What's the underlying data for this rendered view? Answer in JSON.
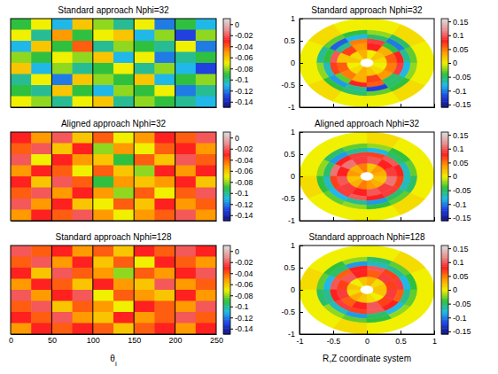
{
  "chart_data": [
    {
      "type": "heatmap",
      "title": "Standard approach Nphi=32",
      "xlim": [
        0,
        250
      ],
      "xticks": [
        0,
        50,
        100,
        150,
        200,
        250
      ],
      "grid": true,
      "tick_labels": false,
      "x_edges": [
        0,
        25,
        50,
        75,
        100,
        125,
        150,
        175,
        200,
        225,
        250
      ],
      "cells": [
        [
          -0.09,
          -0.07,
          -0.11,
          -0.06,
          -0.08,
          -0.1,
          -0.07,
          -0.12,
          -0.09,
          -0.11
        ],
        [
          -0.07,
          -0.1,
          -0.05,
          -0.09,
          -0.07,
          -0.06,
          -0.11,
          -0.08,
          -0.13,
          -0.08
        ],
        [
          -0.11,
          -0.06,
          -0.09,
          -0.04,
          -0.1,
          -0.08,
          -0.09,
          -0.1,
          -0.07,
          -0.12
        ],
        [
          -0.08,
          -0.09,
          -0.07,
          -0.08,
          -0.06,
          -0.11,
          -0.07,
          -0.12,
          -0.1,
          -0.09
        ],
        [
          -0.06,
          -0.11,
          -0.08,
          -0.1,
          -0.09,
          -0.07,
          -0.1,
          -0.08,
          -0.11,
          -0.13
        ],
        [
          -0.1,
          -0.07,
          -0.12,
          -0.06,
          -0.08,
          -0.09,
          -0.06,
          -0.11,
          -0.09,
          -0.08
        ],
        [
          -0.09,
          -0.1,
          -0.06,
          -0.09,
          -0.11,
          -0.08,
          -0.09,
          -0.07,
          -0.12,
          -0.1
        ],
        [
          -0.07,
          -0.08,
          -0.1,
          -0.07,
          -0.06,
          -0.1,
          -0.08,
          -0.09,
          -0.1,
          -0.11
        ]
      ],
      "colorbar": {
        "range": [
          -0.15,
          0.01
        ],
        "ticks": [
          0,
          -0.02,
          -0.04,
          -0.06,
          -0.08,
          -0.1,
          -0.12,
          -0.14
        ]
      }
    },
    {
      "type": "heatmap",
      "title": "Aligned approach Nphi=32",
      "xlim": [
        0,
        250
      ],
      "xticks": [
        0,
        50,
        100,
        150,
        200,
        250
      ],
      "grid": true,
      "tick_labels": false,
      "x_edges": [
        0,
        25,
        50,
        75,
        100,
        125,
        150,
        175,
        200,
        225,
        250
      ],
      "cells": [
        [
          -0.03,
          -0.05,
          -0.02,
          -0.06,
          -0.04,
          -0.07,
          -0.05,
          -0.03,
          -0.04,
          -0.02
        ],
        [
          -0.04,
          -0.02,
          -0.06,
          -0.03,
          -0.08,
          -0.05,
          -0.07,
          -0.04,
          -0.03,
          -0.05
        ],
        [
          -0.02,
          -0.07,
          -0.03,
          -0.05,
          -0.06,
          -0.09,
          -0.04,
          -0.06,
          -0.02,
          -0.04
        ],
        [
          -0.05,
          -0.03,
          -0.04,
          -0.07,
          -0.04,
          -0.06,
          -0.08,
          -0.03,
          -0.05,
          -0.03
        ],
        [
          -0.03,
          -0.06,
          -0.02,
          -0.04,
          -0.09,
          -0.05,
          -0.06,
          -0.05,
          -0.03,
          -0.06
        ],
        [
          -0.04,
          -0.02,
          -0.05,
          -0.03,
          -0.05,
          -0.08,
          -0.04,
          -0.07,
          -0.04,
          -0.02
        ],
        [
          -0.02,
          -0.05,
          -0.03,
          -0.06,
          -0.07,
          -0.04,
          -0.06,
          -0.03,
          -0.05,
          -0.04
        ],
        [
          -0.05,
          -0.03,
          -0.04,
          -0.02,
          -0.05,
          -0.07,
          -0.05,
          -0.04,
          -0.02,
          -0.05
        ]
      ],
      "colorbar": {
        "range": [
          -0.15,
          0.01
        ],
        "ticks": [
          0,
          -0.02,
          -0.04,
          -0.06,
          -0.08,
          -0.1,
          -0.12,
          -0.14
        ]
      }
    },
    {
      "type": "heatmap",
      "title": "Standard approach Nphi=128",
      "xlabel": "θi",
      "xlim": [
        0,
        250
      ],
      "xticks": [
        0,
        50,
        100,
        150,
        200,
        250
      ],
      "grid": true,
      "tick_labels": "x",
      "x_edges": [
        0,
        25,
        50,
        75,
        100,
        125,
        150,
        175,
        200,
        225,
        250
      ],
      "cells": [
        [
          -0.02,
          -0.04,
          -0.03,
          -0.05,
          -0.04,
          -0.06,
          -0.03,
          -0.04,
          -0.02,
          -0.03
        ],
        [
          -0.04,
          -0.02,
          -0.05,
          -0.03,
          -0.06,
          -0.04,
          -0.07,
          -0.03,
          -0.04,
          -0.05
        ],
        [
          -0.03,
          -0.06,
          -0.02,
          -0.04,
          -0.05,
          -0.08,
          -0.04,
          -0.05,
          -0.03,
          -0.02
        ],
        [
          -0.05,
          -0.03,
          -0.04,
          -0.06,
          -0.03,
          -0.05,
          -0.06,
          -0.02,
          -0.05,
          -0.04
        ],
        [
          -0.02,
          -0.05,
          -0.03,
          -0.02,
          -0.07,
          -0.04,
          -0.05,
          -0.06,
          -0.03,
          -0.05
        ],
        [
          -0.04,
          -0.02,
          -0.06,
          -0.04,
          -0.05,
          -0.07,
          -0.03,
          -0.04,
          -0.05,
          -0.02
        ],
        [
          -0.03,
          -0.04,
          -0.02,
          -0.05,
          -0.06,
          -0.03,
          -0.05,
          -0.04,
          -0.02,
          -0.04
        ],
        [
          -0.05,
          -0.03,
          -0.04,
          -0.03,
          -0.04,
          -0.06,
          -0.04,
          -0.03,
          -0.05,
          -0.03
        ]
      ],
      "colorbar": {
        "range": [
          -0.15,
          0.01
        ],
        "ticks": [
          0,
          -0.02,
          -0.04,
          -0.06,
          -0.08,
          -0.1,
          -0.12,
          -0.14
        ]
      }
    },
    {
      "type": "polar_heatmap",
      "title": "Standard approach Nphi=32",
      "xlim": [
        -1,
        1
      ],
      "ylim": [
        -1,
        1
      ],
      "xticks": [
        -1,
        -0.5,
        0,
        0.5,
        1
      ],
      "yticks": [
        -1,
        -0.5,
        0,
        0.5,
        1
      ],
      "tick_labels": "y",
      "r_edges": [
        0.1,
        0.3,
        0.45,
        0.55,
        0.65,
        0.75,
        1.0
      ],
      "theta_edges": [
        0,
        30,
        60,
        90,
        120,
        150,
        180,
        210,
        240,
        270,
        300,
        330,
        360
      ],
      "cells": [
        [
          0.01,
          0.02,
          0.0,
          0.03,
          0.01,
          0.02,
          0.0,
          0.01,
          0.03,
          0.02,
          0.01,
          0.0
        ],
        [
          0.06,
          0.03,
          0.08,
          0.04,
          0.07,
          0.02,
          0.06,
          0.05,
          0.03,
          0.07,
          0.04,
          0.05
        ],
        [
          0.08,
          -0.04,
          0.09,
          0.05,
          -0.06,
          0.1,
          0.07,
          -0.03,
          0.08,
          0.06,
          -0.05,
          0.09
        ],
        [
          -0.06,
          -0.1,
          -0.05,
          -0.08,
          -0.11,
          -0.04,
          -0.07,
          -0.09,
          -0.06,
          -0.12,
          -0.05,
          -0.08
        ],
        [
          -0.03,
          -0.05,
          -0.02,
          -0.04,
          -0.03,
          -0.06,
          -0.02,
          -0.04,
          -0.05,
          -0.03,
          -0.04,
          -0.02
        ],
        [
          0.0,
          0.01,
          0.0,
          0.0,
          0.01,
          0.0,
          0.0,
          0.01,
          0.0,
          0.0,
          0.01,
          0.0
        ]
      ],
      "colorbar": {
        "range": [
          -0.16,
          0.16
        ],
        "ticks": [
          0.15,
          0.1,
          0.05,
          0,
          -0.05,
          -0.1,
          -0.15
        ]
      }
    },
    {
      "type": "polar_heatmap",
      "title": "Aligned approach Nphi=32",
      "xlim": [
        -1,
        1
      ],
      "ylim": [
        -1,
        1
      ],
      "xticks": [
        -1,
        -0.5,
        0,
        0.5,
        1
      ],
      "yticks": [
        -1,
        -0.5,
        0,
        0.5,
        1
      ],
      "tick_labels": "y",
      "r_edges": [
        0.1,
        0.3,
        0.45,
        0.55,
        0.65,
        0.75,
        1.0
      ],
      "theta_edges": [
        0,
        30,
        60,
        90,
        120,
        150,
        180,
        210,
        240,
        270,
        300,
        330,
        360
      ],
      "cells": [
        [
          0.03,
          0.04,
          0.02,
          0.05,
          0.03,
          0.04,
          0.02,
          0.03,
          0.05,
          0.04,
          0.03,
          0.02
        ],
        [
          0.09,
          0.08,
          0.1,
          0.09,
          0.11,
          0.08,
          0.1,
          0.09,
          0.08,
          0.1,
          0.09,
          0.11
        ],
        [
          0.08,
          0.1,
          0.07,
          0.09,
          0.08,
          0.11,
          0.07,
          0.09,
          0.1,
          0.08,
          0.09,
          0.07
        ],
        [
          -0.07,
          -0.05,
          -0.08,
          -0.06,
          -0.09,
          -0.05,
          -0.07,
          -0.08,
          -0.06,
          -0.09,
          -0.05,
          -0.07
        ],
        [
          -0.03,
          -0.04,
          -0.02,
          -0.03,
          -0.05,
          -0.02,
          -0.04,
          -0.03,
          -0.02,
          -0.04,
          -0.03,
          -0.05
        ],
        [
          0.0,
          0.0,
          0.01,
          0.0,
          0.0,
          0.0,
          0.01,
          0.0,
          0.0,
          0.0,
          0.01,
          0.0
        ]
      ],
      "colorbar": {
        "range": [
          -0.16,
          0.16
        ],
        "ticks": [
          0.15,
          0.1,
          0.05,
          0,
          -0.05,
          -0.1,
          -0.15
        ]
      }
    },
    {
      "type": "polar_heatmap",
      "title": "Standard approach Nphi=128",
      "xlabel": "R,Z coordinate system",
      "xlim": [
        -1,
        1
      ],
      "ylim": [
        -1,
        1
      ],
      "xticks": [
        -1,
        -0.5,
        0,
        0.5,
        1
      ],
      "yticks": [
        -1,
        -0.5,
        0,
        0.5,
        1
      ],
      "tick_labels": true,
      "r_edges": [
        0.1,
        0.3,
        0.45,
        0.55,
        0.65,
        0.75,
        1.0
      ],
      "theta_edges": [
        0,
        30,
        60,
        90,
        120,
        150,
        180,
        210,
        240,
        270,
        300,
        330,
        360
      ],
      "cells": [
        [
          0.02,
          0.01,
          0.03,
          0.02,
          0.0,
          0.02,
          0.01,
          0.03,
          0.02,
          0.01,
          0.0,
          0.02
        ],
        [
          0.07,
          0.09,
          0.06,
          0.08,
          0.1,
          0.07,
          0.09,
          0.06,
          0.08,
          0.1,
          0.07,
          0.09
        ],
        [
          0.09,
          0.07,
          0.1,
          0.08,
          0.06,
          0.1,
          0.08,
          0.09,
          0.07,
          0.1,
          0.08,
          0.06
        ],
        [
          -0.08,
          -0.06,
          -0.07,
          -0.09,
          -0.05,
          -0.08,
          -0.06,
          -0.07,
          -0.09,
          -0.05,
          -0.08,
          -0.06
        ],
        [
          -0.04,
          -0.03,
          -0.05,
          -0.02,
          -0.04,
          -0.03,
          -0.05,
          -0.02,
          -0.03,
          -0.04,
          -0.02,
          -0.03
        ],
        [
          0.0,
          0.01,
          0.0,
          0.0,
          0.0,
          0.01,
          0.0,
          0.0,
          0.01,
          0.0,
          0.0,
          0.0
        ]
      ],
      "colorbar": {
        "range": [
          -0.16,
          0.16
        ],
        "ticks": [
          0.15,
          0.1,
          0.05,
          0,
          -0.05,
          -0.1,
          -0.15
        ]
      }
    }
  ]
}
